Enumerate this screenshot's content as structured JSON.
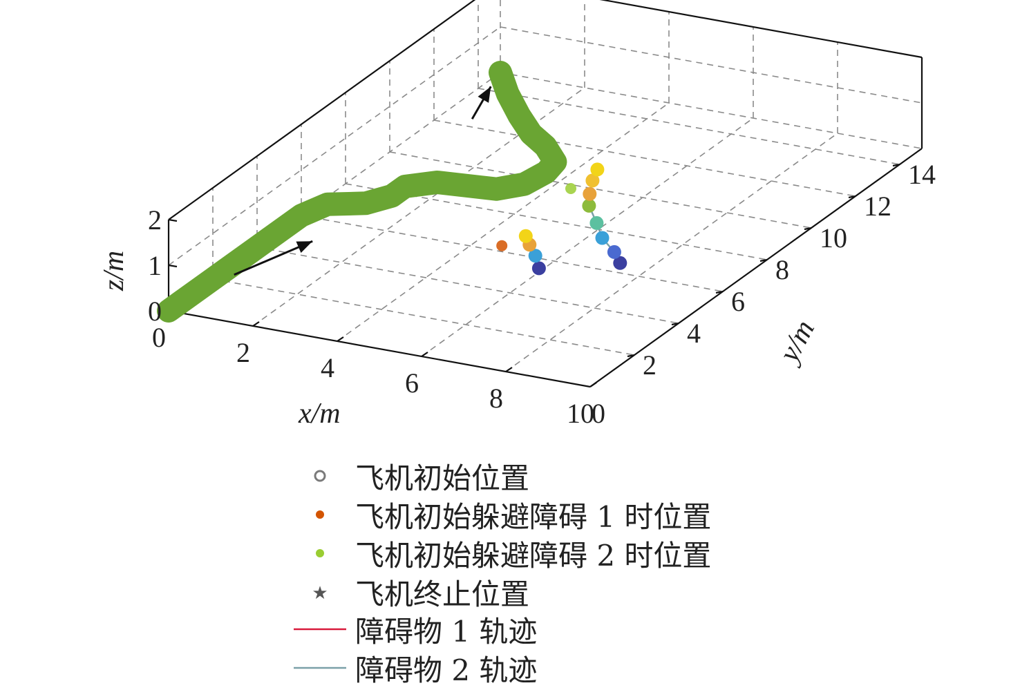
{
  "chart_data": {
    "type": "line3d",
    "x_axis": {
      "label": "x/m",
      "ticks": [
        "0",
        "2",
        "4",
        "6",
        "8",
        "10"
      ],
      "range": [
        0,
        10
      ]
    },
    "y_axis": {
      "label": "y/m",
      "ticks": [
        "0",
        "2",
        "4",
        "6",
        "8",
        "10",
        "12",
        "14"
      ],
      "range": [
        0,
        15
      ]
    },
    "z_axis": {
      "label": "z/m",
      "ticks": [
        "0",
        "1",
        "2"
      ],
      "range": [
        0,
        2
      ]
    },
    "grid": true,
    "legend_position": "bottom",
    "series": [
      {
        "name": "飞机初始位置",
        "kind": "marker",
        "marker": "circle",
        "color": "#7a7a7a",
        "points": [
          [
            0,
            0,
            0
          ]
        ]
      },
      {
        "name": "飞机初始躲避障碍1时位置",
        "kind": "marker",
        "marker": "dot",
        "color": "#d35400",
        "points": [
          [
            4.6,
            6.3,
            0
          ]
        ]
      },
      {
        "name": "飞机初始躲避障碍2时位置",
        "kind": "marker",
        "marker": "dot",
        "color": "#9acd32",
        "points": [
          [
            4.4,
            9.8,
            0
          ]
        ]
      },
      {
        "name": "飞机终止位置",
        "kind": "marker",
        "marker": "star",
        "color": "#8a2be2",
        "points": [
          [
            0,
            15,
            0
          ]
        ]
      },
      {
        "name": "障碍物1轨迹",
        "kind": "line",
        "color": "#d81b3c",
        "points": [
          [
            5.9,
            5.5,
            0
          ],
          [
            5.5,
            6.1,
            0
          ],
          [
            5.1,
            6.6,
            0
          ],
          [
            4.8,
            7.0,
            0
          ]
        ]
      },
      {
        "name": "障碍物2轨迹",
        "kind": "line",
        "color": "#7aa0a8",
        "points": [
          [
            7.3,
            6.5,
            0
          ],
          [
            6.9,
            7.0,
            0
          ],
          [
            6.3,
            7.6,
            0
          ],
          [
            5.8,
            8.3,
            0
          ],
          [
            5.2,
            9.1,
            0
          ],
          [
            4.9,
            9.7,
            0
          ],
          [
            4.6,
            10.4,
            0
          ],
          [
            4.4,
            11.0,
            0
          ]
        ]
      },
      {
        "kind": "path",
        "color": "#6aa533",
        "points": [
          [
            0,
            0,
            0
          ],
          [
            0,
            2,
            0
          ],
          [
            0,
            4,
            0
          ],
          [
            0,
            6,
            0
          ],
          [
            0.2,
            6.8,
            0
          ],
          [
            0.9,
            7.2,
            0
          ],
          [
            1.2,
            7.8,
            0
          ],
          [
            1.2,
            8.4,
            0
          ],
          [
            1.7,
            8.9,
            0
          ],
          [
            3.0,
            9.1,
            0
          ],
          [
            3.4,
            9.6,
            0
          ],
          [
            3.5,
            10.4,
            0
          ],
          [
            3.4,
            11.0,
            0
          ],
          [
            2.8,
            11.7,
            0
          ],
          [
            2.2,
            12.2,
            0
          ],
          [
            1.5,
            13.0,
            0
          ],
          [
            0.7,
            14.0,
            0
          ],
          [
            0,
            15,
            0
          ]
        ]
      }
    ]
  },
  "legend": [
    {
      "label": "飞机初始位置",
      "symbol": "circle-icon",
      "color": "#7a7a7a"
    },
    {
      "label": "飞机初始躲避障碍 1 时位置",
      "symbol": "dot-icon",
      "color": "#d35400"
    },
    {
      "label": "飞机初始躲避障碍 2 时位置",
      "symbol": "dot-icon",
      "color": "#9acd32"
    },
    {
      "label": "飞机终止位置",
      "symbol": "star-icon",
      "color": "#555555"
    },
    {
      "label": "障碍物 1 轨迹",
      "symbol": "line-icon",
      "color": "#d81b3c"
    },
    {
      "label": "障碍物 2 轨迹",
      "symbol": "line-icon",
      "color": "#7aa0a8"
    }
  ]
}
